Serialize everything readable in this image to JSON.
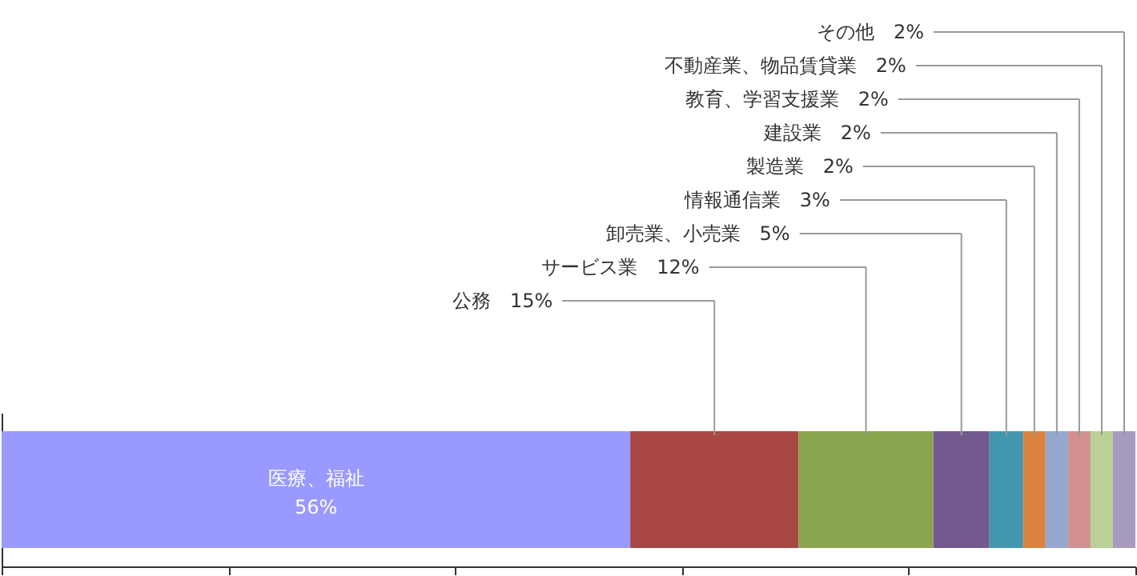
{
  "chart_data": {
    "type": "bar",
    "orientation": "horizontal",
    "stacked": true,
    "categories": [
      null
    ],
    "grid": false,
    "xlim": [
      0,
      101
    ],
    "xticks": [
      {
        "value": 0,
        "label": null
      },
      {
        "value": 20.2,
        "label": null
      },
      {
        "value": 40.4,
        "label": null
      },
      {
        "value": 60.6,
        "label": null
      },
      {
        "value": 80.8,
        "label": null
      },
      {
        "value": 101,
        "label": null
      }
    ],
    "series": [
      {
        "name": "医療、福祉",
        "color": "#9999ff",
        "values": [
          56
        ],
        "value_labels": [
          "56%"
        ]
      },
      {
        "name": "公務",
        "color": "#a94744",
        "values": [
          15
        ],
        "value_labels": [
          "15%"
        ]
      },
      {
        "name": "サービス業",
        "color": "#8aa54d",
        "values": [
          12
        ],
        "value_labels": [
          "12%"
        ]
      },
      {
        "name": "卸売業、小売業",
        "color": "#725a8f",
        "values": [
          5
        ],
        "value_labels": [
          "5%"
        ]
      },
      {
        "name": "情報通信業",
        "color": "#4297ae",
        "values": [
          3
        ],
        "value_labels": [
          "3%"
        ]
      },
      {
        "name": "製造業",
        "color": "#dc843e",
        "values": [
          2
        ],
        "value_labels": [
          "2%"
        ]
      },
      {
        "name": "建設業",
        "color": "#94a8d0",
        "values": [
          2
        ],
        "value_labels": [
          "2%"
        ]
      },
      {
        "name": "教育、学習支援業",
        "color": "#d29190",
        "values": [
          2
        ],
        "value_labels": [
          "2%"
        ]
      },
      {
        "name": "不動産業、物品賃貸業",
        "color": "#b9d097",
        "values": [
          2
        ],
        "value_labels": [
          "2%"
        ]
      },
      {
        "name": "その他",
        "color": "#a89bc0",
        "values": [
          2
        ],
        "value_labels": [
          "2%"
        ]
      }
    ]
  }
}
